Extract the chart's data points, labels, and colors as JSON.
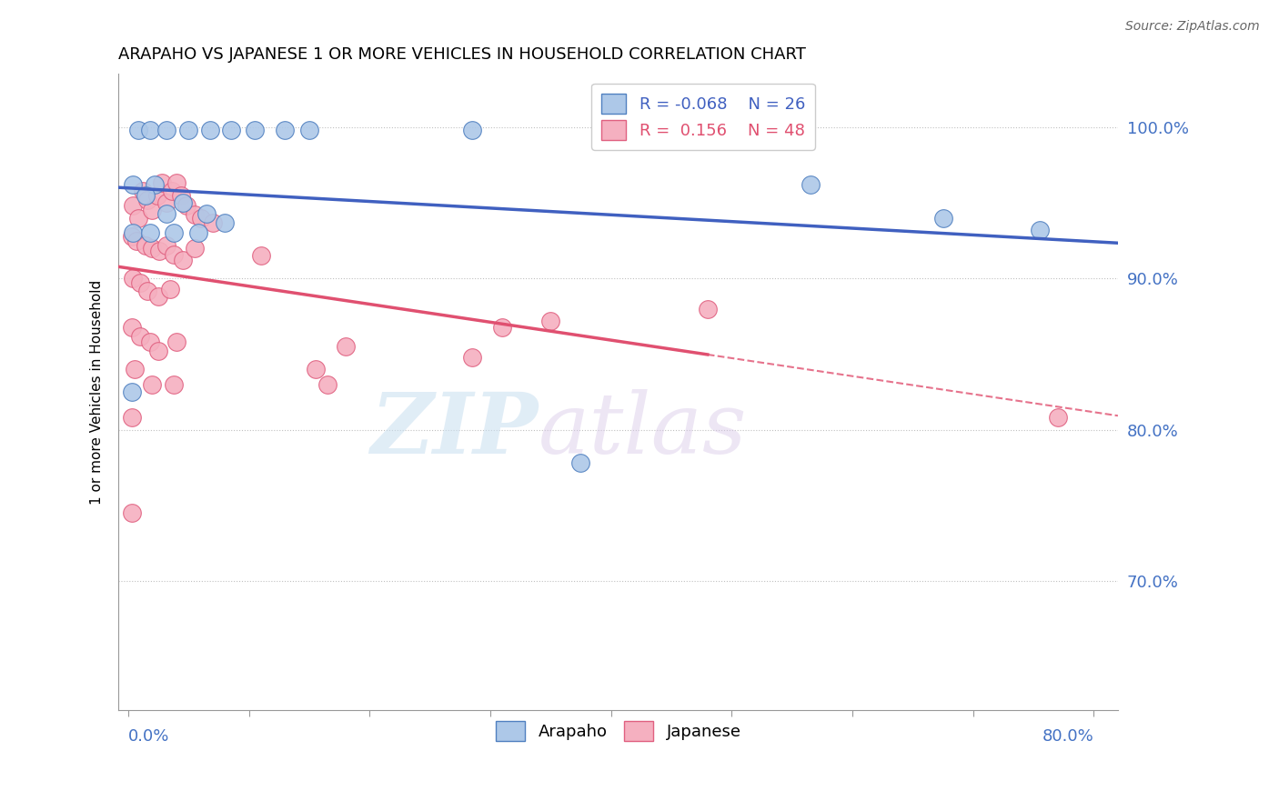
{
  "title": "ARAPAHO VS JAPANESE 1 OR MORE VEHICLES IN HOUSEHOLD CORRELATION CHART",
  "source": "Source: ZipAtlas.com",
  "ylabel": "1 or more Vehicles in Household",
  "ylim": [
    0.615,
    1.035
  ],
  "xlim": [
    -0.008,
    0.82
  ],
  "ytick_values": [
    0.7,
    0.8,
    0.9,
    1.0
  ],
  "legend_r_arapaho": "-0.068",
  "legend_n_arapaho": "26",
  "legend_r_japanese": "0.156",
  "legend_n_japanese": "48",
  "watermark_zip": "ZIP",
  "watermark_atlas": "atlas",
  "arapaho_color": "#adc8e8",
  "arapaho_edge": "#5080c0",
  "japanese_color": "#f5b0c0",
  "japanese_edge": "#e06080",
  "arapaho_line_color": "#4060c0",
  "japanese_line_color": "#e05070",
  "arapaho_scatter": [
    [
      0.008,
      0.998
    ],
    [
      0.018,
      0.998
    ],
    [
      0.032,
      0.998
    ],
    [
      0.05,
      0.998
    ],
    [
      0.068,
      0.998
    ],
    [
      0.085,
      0.998
    ],
    [
      0.105,
      0.998
    ],
    [
      0.13,
      0.998
    ],
    [
      0.15,
      0.998
    ],
    [
      0.285,
      0.998
    ],
    [
      0.004,
      0.962
    ],
    [
      0.022,
      0.962
    ],
    [
      0.014,
      0.955
    ],
    [
      0.045,
      0.95
    ],
    [
      0.032,
      0.943
    ],
    [
      0.065,
      0.943
    ],
    [
      0.08,
      0.937
    ],
    [
      0.004,
      0.93
    ],
    [
      0.018,
      0.93
    ],
    [
      0.038,
      0.93
    ],
    [
      0.058,
      0.93
    ],
    [
      0.003,
      0.825
    ],
    [
      0.375,
      0.778
    ],
    [
      0.565,
      0.962
    ],
    [
      0.675,
      0.94
    ],
    [
      0.755,
      0.932
    ]
  ],
  "japanese_scatter": [
    [
      0.004,
      0.948
    ],
    [
      0.008,
      0.94
    ],
    [
      0.012,
      0.958
    ],
    [
      0.016,
      0.952
    ],
    [
      0.02,
      0.945
    ],
    [
      0.024,
      0.955
    ],
    [
      0.028,
      0.963
    ],
    [
      0.032,
      0.95
    ],
    [
      0.036,
      0.958
    ],
    [
      0.04,
      0.963
    ],
    [
      0.044,
      0.955
    ],
    [
      0.048,
      0.948
    ],
    [
      0.055,
      0.942
    ],
    [
      0.06,
      0.94
    ],
    [
      0.07,
      0.937
    ],
    [
      0.003,
      0.928
    ],
    [
      0.007,
      0.925
    ],
    [
      0.014,
      0.922
    ],
    [
      0.02,
      0.92
    ],
    [
      0.026,
      0.918
    ],
    [
      0.032,
      0.922
    ],
    [
      0.038,
      0.916
    ],
    [
      0.045,
      0.912
    ],
    [
      0.055,
      0.92
    ],
    [
      0.11,
      0.915
    ],
    [
      0.004,
      0.9
    ],
    [
      0.01,
      0.897
    ],
    [
      0.016,
      0.892
    ],
    [
      0.025,
      0.888
    ],
    [
      0.035,
      0.893
    ],
    [
      0.18,
      0.855
    ],
    [
      0.003,
      0.868
    ],
    [
      0.01,
      0.862
    ],
    [
      0.018,
      0.858
    ],
    [
      0.025,
      0.852
    ],
    [
      0.04,
      0.858
    ],
    [
      0.155,
      0.84
    ],
    [
      0.31,
      0.868
    ],
    [
      0.165,
      0.83
    ],
    [
      0.285,
      0.848
    ],
    [
      0.005,
      0.84
    ],
    [
      0.02,
      0.83
    ],
    [
      0.038,
      0.83
    ],
    [
      0.35,
      0.872
    ],
    [
      0.48,
      0.88
    ],
    [
      0.003,
      0.745
    ],
    [
      0.77,
      0.808
    ],
    [
      0.003,
      0.808
    ]
  ]
}
